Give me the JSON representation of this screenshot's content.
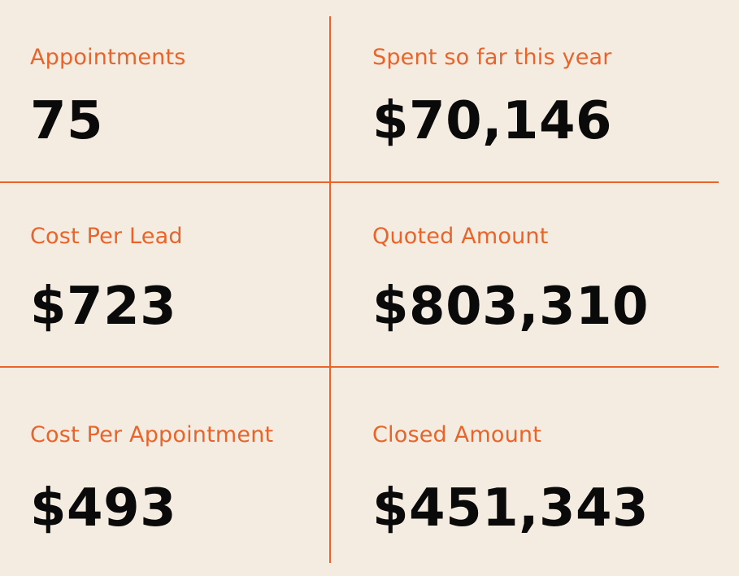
{
  "metrics": [
    {
      "label": "Appointments",
      "value": "75"
    },
    {
      "label": "Spent so far this year",
      "value": "$70,146"
    },
    {
      "label": "Cost Per Lead",
      "value": "$723"
    },
    {
      "label": "Quoted Amount",
      "value": "$803,310"
    },
    {
      "label": "Cost Per Appointment",
      "value": "$493"
    },
    {
      "label": "Closed Amount",
      "value": "$451,343"
    }
  ],
  "colors": {
    "background": "#f5ece1",
    "accent": "#e8642a",
    "value_text": "#0a0a0a"
  }
}
